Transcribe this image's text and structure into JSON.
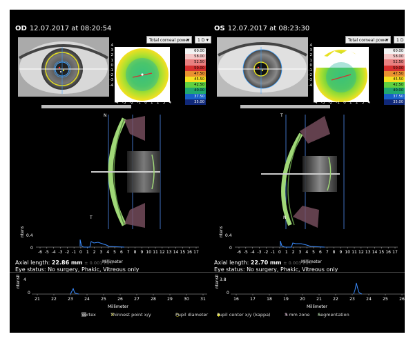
{
  "od": {
    "eye": "OD",
    "date": "12.07.2017 at 08:20:54",
    "map_select": "Total corneal power",
    "step_select": "1 D",
    "map_label_T": "T",
    "map_label_N": "N",
    "map_ticks": [
      "4",
      "3",
      "2",
      "1",
      "0",
      "-1",
      "-2",
      "-3",
      "-4"
    ],
    "map_xticks": [
      "-4",
      "-3",
      "-2",
      "-1",
      "0",
      "1",
      "2",
      "3",
      "4"
    ],
    "scan_top": "N",
    "scan_bottom": "T",
    "axial_length_label": "Axial length:",
    "axial_length_value": "22.86 mm",
    "axial_length_err": "± 0.001 mm",
    "eye_status": "Eye status: No surgery, Phakic, Vitreous only",
    "profile_ymax": "0.4",
    "profile_ymin": "0",
    "profile_ylabel": "ntensity",
    "profile_xticks": [
      "-6",
      "-5",
      "-4",
      "-3",
      "-2",
      "-1",
      "0",
      "1",
      "2",
      "3",
      "4",
      "5",
      "6",
      "7",
      "8",
      "9",
      "10",
      "11",
      "12",
      "13",
      "14",
      "15",
      "16",
      "17"
    ],
    "profile_xlabel": "Millimeter",
    "axial_ymax": "4",
    "axial_ymin": "0",
    "axial_xticks": [
      "21",
      "22",
      "23",
      "24",
      "25",
      "26",
      "27",
      "28",
      "29",
      "30",
      "31"
    ],
    "axial_xlabel": "Millimeter"
  },
  "os": {
    "eye": "OS",
    "date": "12.07.2017 at 08:23:30",
    "map_select": "Total corneal power",
    "step_select": "1 D",
    "map_label_T": "T",
    "map_label_N": "N",
    "map_ticks": [
      "4",
      "3",
      "2",
      "1",
      "0",
      "-1",
      "-2",
      "-3",
      "-4"
    ],
    "map_xticks": [
      "-4",
      "-3",
      "-2",
      "-1",
      "0",
      "1",
      "2",
      "3",
      "4"
    ],
    "scan_top": "T",
    "scan_bottom": "N",
    "axial_length_label": "Axial length:",
    "axial_length_value": "22.70 mm",
    "axial_length_err": "± 0.003 mm",
    "eye_status": "Eye status: No surgery, Phakic, Vitreous only",
    "profile_ymax": "0.4",
    "profile_ymin": "0",
    "profile_ylabel": "ntensity",
    "profile_xticks": [
      "-6",
      "-5",
      "-4",
      "-3",
      "-2",
      "-1",
      "0",
      "1",
      "2",
      "3",
      "4",
      "5",
      "6",
      "7",
      "8",
      "9",
      "10",
      "11",
      "12",
      "13",
      "14",
      "15",
      "16",
      "17"
    ],
    "profile_xlabel": "Millimeter",
    "axial_ymax": "3.8",
    "axial_ymin": "0",
    "axial_xticks": [
      "16",
      "17",
      "18",
      "19",
      "20",
      "21",
      "22",
      "23",
      "24",
      "25",
      "26"
    ],
    "axial_xlabel": "Millimeter"
  },
  "color_legend": [
    {
      "value": "60.00",
      "color": "#f2f2f2"
    },
    {
      "value": "58.00",
      "color": "#f5c6c6"
    },
    {
      "value": "52.50",
      "color": "#e88080"
    },
    {
      "value": "50.00",
      "color": "#d63030"
    },
    {
      "value": "47.50",
      "color": "#e89030"
    },
    {
      "value": "45.50",
      "color": "#f5e020"
    },
    {
      "value": "42.50",
      "color": "#60d040"
    },
    {
      "value": "40.00",
      "color": "#20a870"
    },
    {
      "value": "37.50",
      "color": "#1860c8"
    },
    {
      "value": "35.00",
      "color": "#102878"
    }
  ],
  "legend": {
    "vertex": "Vertex",
    "thinnest": "Thinnest point x/y",
    "pupil_diameter": "Pupil diameter",
    "pupil_center": "Pupil center x/y (kappa)",
    "zone": "3 mm zone",
    "segmentation": "Segmentation"
  }
}
